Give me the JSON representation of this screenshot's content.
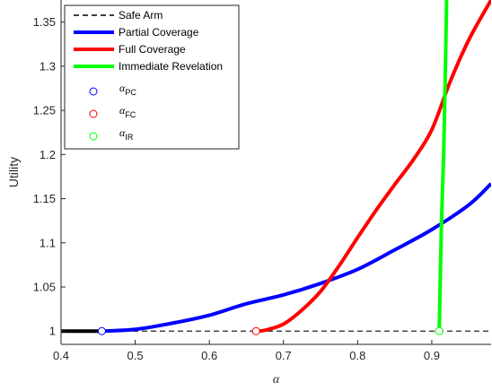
{
  "chart_data": {
    "type": "line",
    "xlabel": "α",
    "ylabel": "Utility",
    "xlim": [
      0.4,
      0.98
    ],
    "ylim": [
      0.985,
      1.375
    ],
    "x_ticks": [
      "0.4",
      "0.5",
      "0.6",
      "0.7",
      "0.8",
      "0.9"
    ],
    "y_ticks": [
      "1",
      "1.05",
      "1.1",
      "1.15",
      "1.2",
      "1.25",
      "1.3",
      "1.35"
    ],
    "grid": false,
    "legend_position": "top-left",
    "series": [
      {
        "name": "Safe Arm",
        "color": "#000000",
        "style": "dashed",
        "x": [
          0.4,
          0.98
        ],
        "y": [
          1.0,
          1.0
        ],
        "solid_until": 0.455
      },
      {
        "name": "Partial Coverage",
        "color": "#0000ff",
        "style": "solid",
        "x": [
          0.455,
          0.5,
          0.55,
          0.6,
          0.65,
          0.7,
          0.75,
          0.8,
          0.85,
          0.9,
          0.95,
          0.98
        ],
        "y": [
          1.0,
          1.002,
          1.009,
          1.018,
          1.031,
          1.041,
          1.054,
          1.07,
          1.092,
          1.115,
          1.143,
          1.167
        ]
      },
      {
        "name": "Full Coverage",
        "color": "#ff0000",
        "style": "solid",
        "x": [
          0.663,
          0.675,
          0.7,
          0.725,
          0.75,
          0.775,
          0.8,
          0.825,
          0.85,
          0.875,
          0.9,
          0.925,
          0.95,
          0.98
        ],
        "y": [
          1.0,
          1.001,
          1.008,
          1.024,
          1.045,
          1.074,
          1.106,
          1.137,
          1.166,
          1.194,
          1.228,
          1.283,
          1.33,
          1.375
        ]
      },
      {
        "name": "Immediate Revelation",
        "color": "#00ff00",
        "style": "solid",
        "x": [
          0.91,
          0.913,
          0.916,
          0.918,
          0.92
        ],
        "y": [
          1.0,
          1.12,
          1.2,
          1.28,
          1.375
        ]
      }
    ],
    "markers": [
      {
        "name": "α",
        "sub": "PC",
        "color": "#0000ff",
        "x": 0.455,
        "y": 1.0
      },
      {
        "name": "α",
        "sub": "FC",
        "color": "#ff0000",
        "x": 0.663,
        "y": 1.0
      },
      {
        "name": "α",
        "sub": "IR",
        "color": "#00ff00",
        "x": 0.91,
        "y": 1.0
      }
    ]
  }
}
